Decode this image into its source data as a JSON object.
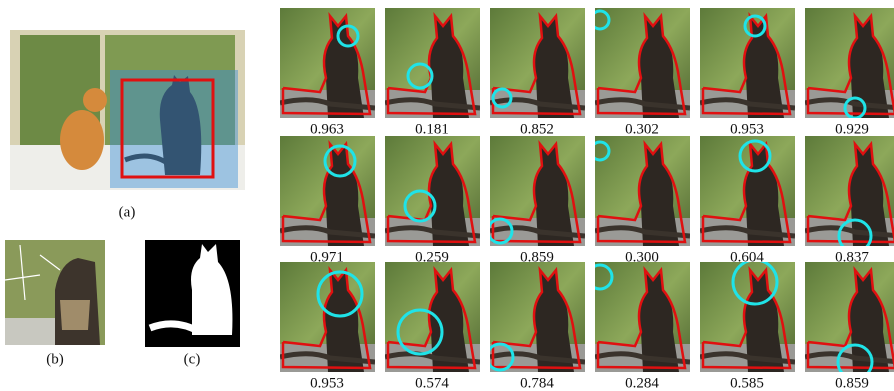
{
  "panels": [
    {
      "label": "(a)"
    },
    {
      "label": "(b)"
    },
    {
      "label": "(c)"
    }
  ],
  "grid": {
    "rows": [
      [
        "0.963",
        "0.181",
        "0.852",
        "0.302",
        "0.953",
        "0.929"
      ],
      [
        "0.971",
        "0.259",
        "0.859",
        "0.300",
        "0.604",
        "0.837"
      ],
      [
        "0.953",
        "0.574",
        "0.784",
        "0.284",
        "0.585",
        "0.859"
      ]
    ]
  }
}
